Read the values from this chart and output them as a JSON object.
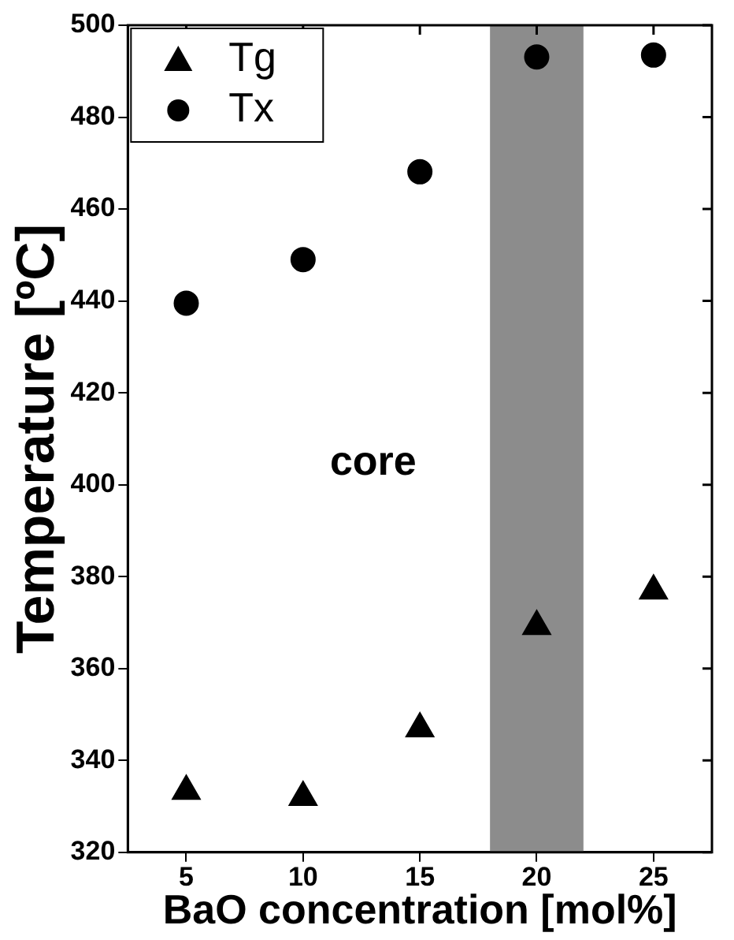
{
  "chart_data": {
    "type": "scatter",
    "xlabel": "BaO concentration [mol%]",
    "ylabel": "Temperature [ºC]",
    "x": [
      5,
      10,
      15,
      20,
      25
    ],
    "series": [
      {
        "name": "Tg",
        "color": "#000000",
        "marker": "triangle",
        "values": [
          333.3,
          332.0,
          346.9,
          369.2,
          376.9
        ]
      },
      {
        "name": "Tx",
        "color": "#000000",
        "marker": "circle",
        "values": [
          439.5,
          449.0,
          468.1,
          493.1,
          493.5
        ]
      }
    ],
    "xlim": [
      2.5,
      27.5
    ],
    "xticks": [
      5,
      10,
      15,
      20,
      25
    ],
    "ylim": [
      320,
      500
    ],
    "yticks": [
      320,
      340,
      360,
      380,
      400,
      420,
      440,
      460,
      480,
      500
    ],
    "bands": [
      {
        "axis": "x",
        "from": 18,
        "to": 22,
        "color": "#8c8c8c"
      }
    ],
    "annotations": [
      "core"
    ],
    "legend": "top left",
    "grid": false
  }
}
